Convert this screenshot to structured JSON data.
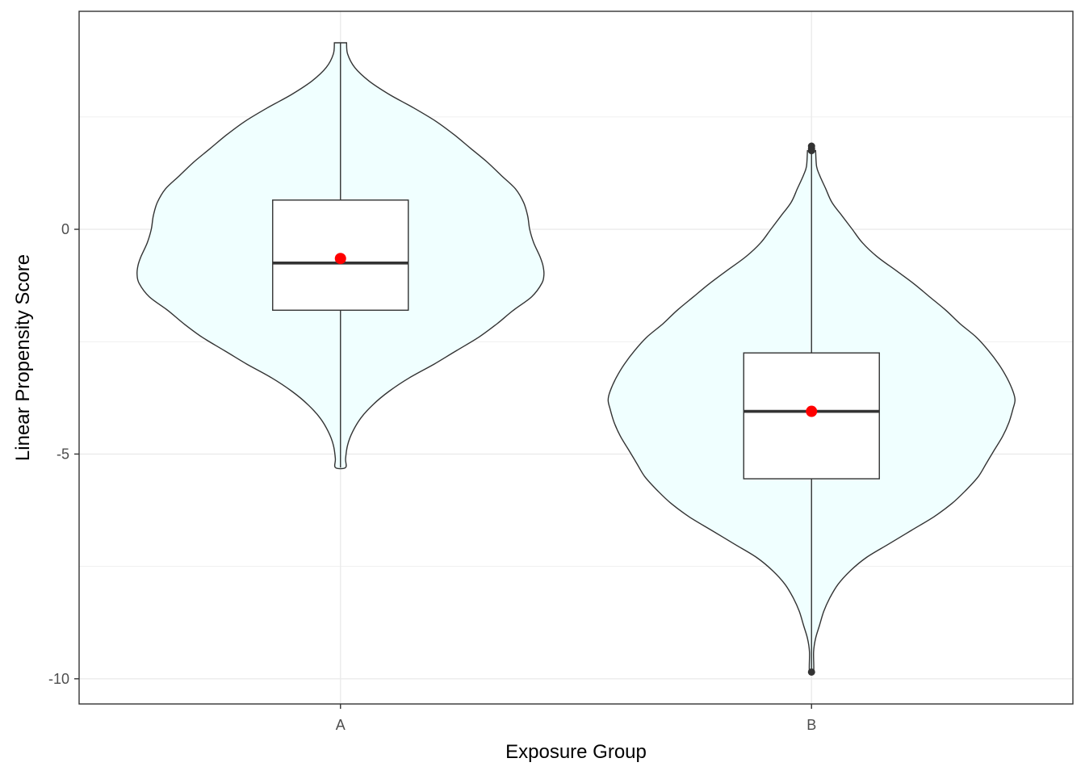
{
  "chart_data": {
    "type": "violin",
    "title": "",
    "xlabel": "Exposure Group",
    "ylabel": "Linear Propensity Score",
    "categories": [
      "A",
      "B"
    ],
    "y_ticks": [
      {
        "value": 0,
        "label": "0"
      },
      {
        "value": -5,
        "label": "-5"
      },
      {
        "value": -10,
        "label": "-10"
      }
    ],
    "ylim": [
      -10.56,
      4.85
    ],
    "grid": true,
    "legend": "none",
    "colors": {
      "violin_fill": "#F0FFFF",
      "outline": "#333333",
      "box_fill": "#FFFFFF",
      "mean_point": "#FF0000",
      "grid": "#EBEBEB",
      "panel_border": "#333333"
    },
    "groups": [
      {
        "name": "A",
        "violin_min": -5.3,
        "violin_max": 4.15,
        "density_profile": [
          [
            4.15,
            0.03
          ],
          [
            3.9,
            0.035
          ],
          [
            3.6,
            0.07
          ],
          [
            3.3,
            0.14
          ],
          [
            3.0,
            0.24
          ],
          [
            2.7,
            0.36
          ],
          [
            2.4,
            0.47
          ],
          [
            2.1,
            0.56
          ],
          [
            1.8,
            0.64
          ],
          [
            1.5,
            0.72
          ],
          [
            1.2,
            0.79
          ],
          [
            0.9,
            0.86
          ],
          [
            0.6,
            0.9
          ],
          [
            0.3,
            0.92
          ],
          [
            0.0,
            0.93
          ],
          [
            -0.3,
            0.95
          ],
          [
            -0.6,
            0.98
          ],
          [
            -0.8,
            0.995
          ],
          [
            -1.0,
            1.0
          ],
          [
            -1.2,
            0.99
          ],
          [
            -1.5,
            0.94
          ],
          [
            -1.8,
            0.85
          ],
          [
            -2.1,
            0.77
          ],
          [
            -2.4,
            0.68
          ],
          [
            -2.7,
            0.57
          ],
          [
            -3.0,
            0.46
          ],
          [
            -3.3,
            0.34
          ],
          [
            -3.6,
            0.24
          ],
          [
            -3.9,
            0.16
          ],
          [
            -4.2,
            0.1
          ],
          [
            -4.5,
            0.06
          ],
          [
            -4.8,
            0.035
          ],
          [
            -5.1,
            0.025
          ],
          [
            -5.3,
            0.025
          ]
        ],
        "box": {
          "q1": -1.8,
          "median": -0.75,
          "q3": 0.65,
          "whisker_low": -5.3,
          "whisker_high": 4.15
        },
        "mean": -0.65,
        "outliers": []
      },
      {
        "name": "B",
        "violin_min": -9.85,
        "violin_max": 1.75,
        "density_profile": [
          [
            1.75,
            0.02
          ],
          [
            1.4,
            0.025
          ],
          [
            1.2,
            0.04
          ],
          [
            0.9,
            0.07
          ],
          [
            0.6,
            0.1
          ],
          [
            0.3,
            0.15
          ],
          [
            0.0,
            0.2
          ],
          [
            -0.3,
            0.25
          ],
          [
            -0.6,
            0.32
          ],
          [
            -0.9,
            0.41
          ],
          [
            -1.2,
            0.5
          ],
          [
            -1.5,
            0.58
          ],
          [
            -1.8,
            0.66
          ],
          [
            -2.1,
            0.73
          ],
          [
            -2.4,
            0.81
          ],
          [
            -2.7,
            0.87
          ],
          [
            -3.0,
            0.92
          ],
          [
            -3.3,
            0.96
          ],
          [
            -3.6,
            0.99
          ],
          [
            -3.8,
            1.0
          ],
          [
            -4.0,
            0.99
          ],
          [
            -4.3,
            0.97
          ],
          [
            -4.6,
            0.94
          ],
          [
            -4.9,
            0.9
          ],
          [
            -5.2,
            0.86
          ],
          [
            -5.5,
            0.82
          ],
          [
            -5.8,
            0.76
          ],
          [
            -6.1,
            0.69
          ],
          [
            -6.4,
            0.6
          ],
          [
            -6.7,
            0.49
          ],
          [
            -7.0,
            0.38
          ],
          [
            -7.3,
            0.27
          ],
          [
            -7.6,
            0.19
          ],
          [
            -7.9,
            0.13
          ],
          [
            -8.2,
            0.09
          ],
          [
            -8.5,
            0.06
          ],
          [
            -8.8,
            0.04
          ],
          [
            -9.1,
            0.02
          ],
          [
            -9.4,
            0.01
          ],
          [
            -9.85,
            0.01
          ]
        ],
        "box": {
          "q1": -5.55,
          "median": -4.05,
          "q3": -2.75,
          "whisker_low": -9.85,
          "whisker_high": 1.75
        },
        "mean": -4.05,
        "outliers": [
          1.85,
          1.8,
          1.75,
          -9.85
        ]
      }
    ]
  }
}
